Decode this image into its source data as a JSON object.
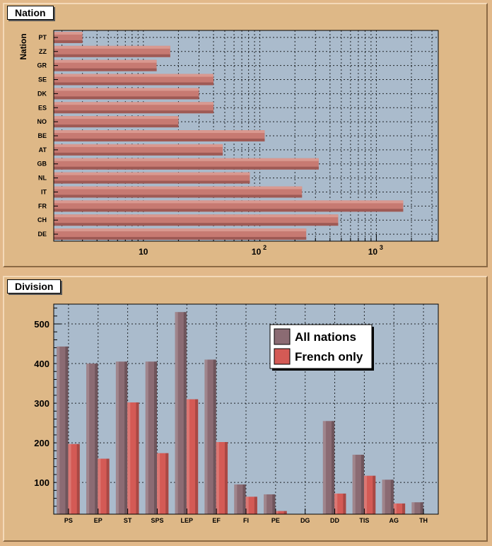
{
  "panels": {
    "nation_title": "Nation",
    "division_title": "Division"
  },
  "colors": {
    "background": "#deb887",
    "frame": "#aabbcc",
    "all_nations": "#8b6b73",
    "french_only": "#d45a55",
    "nation_bar": "#c77a72"
  },
  "chart_data": [
    {
      "type": "bar",
      "orientation": "horizontal",
      "title": "Nation",
      "ylabel": "Nation",
      "xscale": "log",
      "xlim": [
        1.7,
        3400
      ],
      "x_tick_labels": [
        "10",
        "10",
        "2",
        "10",
        "3"
      ],
      "categories": [
        "PT",
        "ZZ",
        "GR",
        "SE",
        "DK",
        "ES",
        "NO",
        "BE",
        "AT",
        "GB",
        "NL",
        "IT",
        "FR",
        "CH",
        "DE"
      ],
      "values": [
        3,
        17,
        13,
        40,
        30,
        40,
        20,
        110,
        48,
        320,
        82,
        230,
        1700,
        470,
        250
      ],
      "grid": true
    },
    {
      "type": "bar",
      "title": "Division",
      "categories": [
        "PS",
        "EP",
        "ST",
        "SPS",
        "LEP",
        "EF",
        "FI",
        "PE",
        "DG",
        "DD",
        "TIS",
        "AG",
        "TH"
      ],
      "ylim": [
        20,
        550
      ],
      "y_ticks": [
        "100",
        "200",
        "300",
        "400",
        "500"
      ],
      "series": [
        {
          "name": "All nations",
          "values": [
            443,
            400,
            405,
            405,
            530,
            410,
            95,
            70,
            0,
            255,
            170,
            107,
            50
          ]
        },
        {
          "name": "French only",
          "values": [
            197,
            160,
            302,
            174,
            310,
            202,
            64,
            28,
            0,
            72,
            117,
            47,
            0
          ]
        }
      ],
      "legend_position": "top-right",
      "grid": true
    }
  ]
}
